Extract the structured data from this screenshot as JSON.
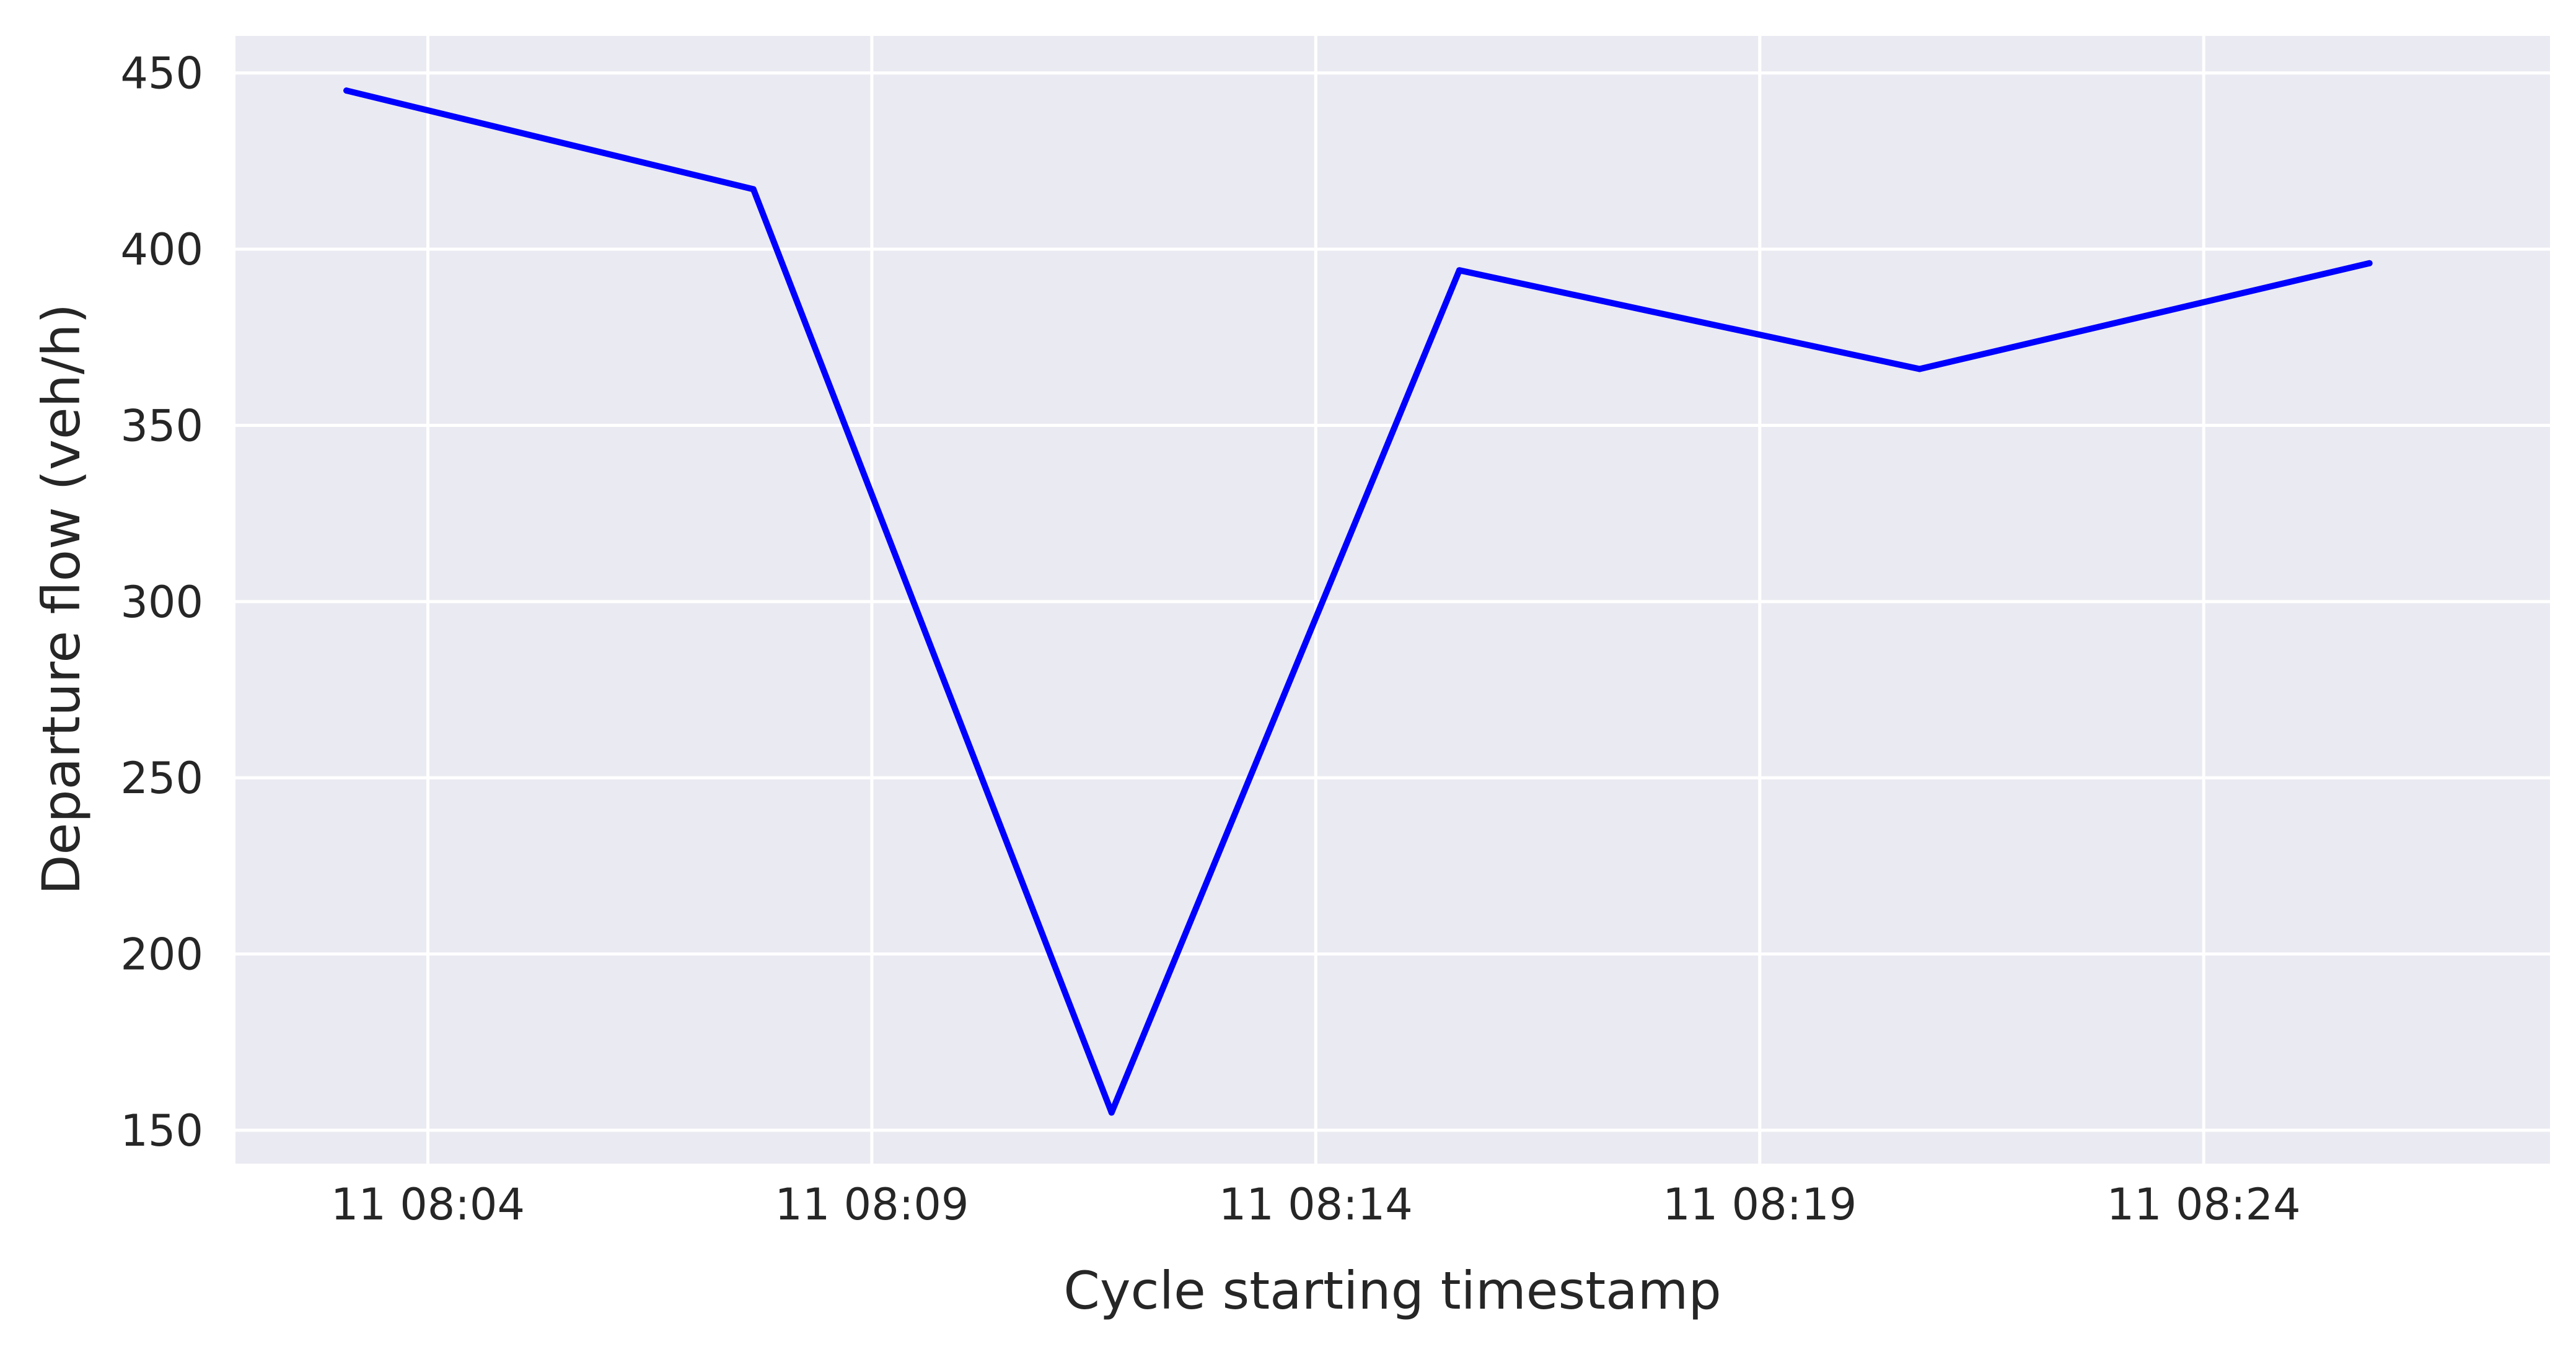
{
  "chart_data": {
    "type": "line",
    "title": "",
    "xlabel": "Cycle starting timestamp",
    "ylabel": "Departure flow (veh/h)",
    "x_ticks": [
      "11 08:04",
      "11 08:09",
      "11 08:14",
      "11 08:19",
      "11 08:24"
    ],
    "y_ticks": [
      150,
      200,
      250,
      300,
      350,
      400,
      450
    ],
    "xlim": [
      "08:01:50",
      "08:27:54"
    ],
    "ylim": [
      140.5,
      460.5
    ],
    "grid": true,
    "legend": "none",
    "series": [
      {
        "color": "#0000ff",
        "points": [
          {
            "x": "08:03:05",
            "y": 445
          },
          {
            "x": "08:07:40",
            "y": 417
          },
          {
            "x": "08:11:42",
            "y": 155
          },
          {
            "x": "08:15:37",
            "y": 394
          },
          {
            "x": "08:20:48",
            "y": 366
          },
          {
            "x": "08:25:52",
            "y": 396
          }
        ]
      }
    ],
    "colors": {
      "plot_background": "#eaeaf2",
      "grid": "#ffffff",
      "line": "#0000ff",
      "text": "#262626"
    }
  }
}
